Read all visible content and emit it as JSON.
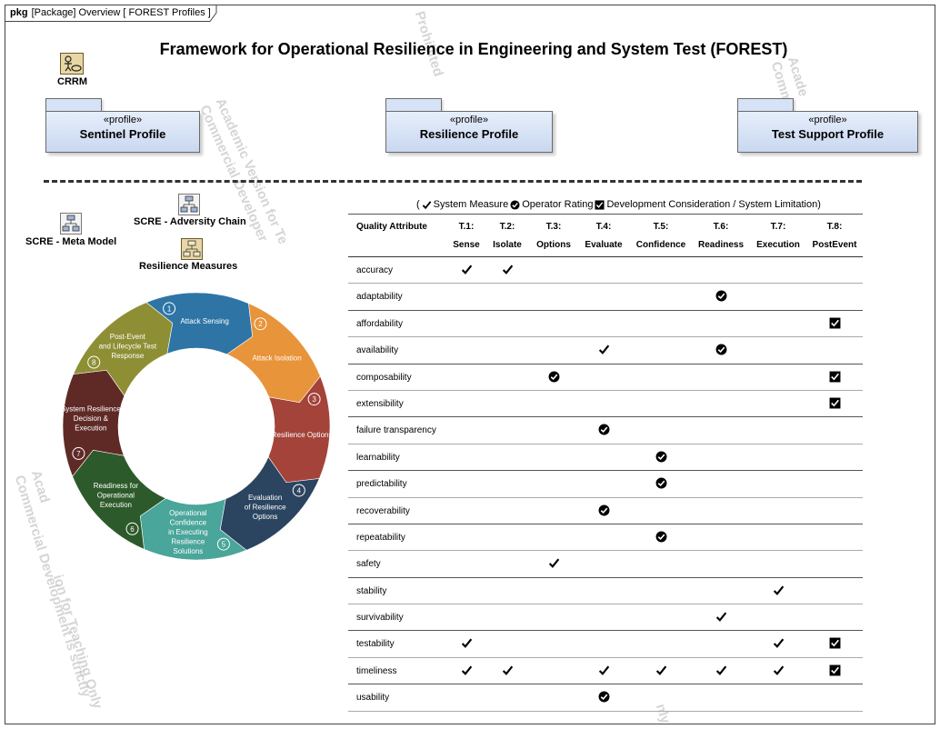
{
  "frame": {
    "kind": "pkg",
    "label": "[Package] Overview [ FOREST Profiles ]"
  },
  "title": "Framework for Operational Resilience in Engineering and System Test (FOREST)",
  "watermark": {
    "lines": [
      "Academic Version for Teaching Only",
      "Commercial Development is strictly Prohibited"
    ],
    "fragments": [
      "Prohibited",
      "Acade\nComm",
      "ion for Teaching Only",
      "Academic Version for Te\nCommercial Developer",
      "Acad\nCommercial Development is strictly",
      "nly"
    ]
  },
  "icons": {
    "crrm": "CRRM",
    "adversity_chain": "SCRE - Adversity Chain",
    "meta_model": "SCRE - Meta Model",
    "resilience_measures": "Resilience Measures"
  },
  "profiles": [
    {
      "stereotype": "«profile»",
      "name": "Sentinel Profile"
    },
    {
      "stereotype": "«profile»",
      "name": "Resilience Profile"
    },
    {
      "stereotype": "«profile»",
      "name": "Test Support Profile"
    }
  ],
  "cycle": {
    "segments": [
      {
        "n": "1",
        "lines": [
          "Attack Sensing"
        ],
        "color": "#2e75a6"
      },
      {
        "n": "2",
        "lines": [
          "Attack Isolation"
        ],
        "color": "#e8943a"
      },
      {
        "n": "3",
        "lines": [
          "Resilience Options"
        ],
        "color": "#a4433a"
      },
      {
        "n": "4",
        "lines": [
          "Evaluation",
          "of Resilience",
          "Options"
        ],
        "color": "#2b4460"
      },
      {
        "n": "5",
        "lines": [
          "Operational",
          "Confidence",
          "in Executing",
          "Resilience",
          "Solutions"
        ],
        "color": "#4aa59a"
      },
      {
        "n": "6",
        "lines": [
          "Readiness for",
          "Operational",
          "Execution"
        ],
        "color": "#2d5a2a"
      },
      {
        "n": "7",
        "lines": [
          "System Resilience",
          "Decision &",
          "Execution"
        ],
        "color": "#5f2a26"
      },
      {
        "n": "8",
        "lines": [
          "Post-Event",
          "and Lifecycle Test",
          "Response"
        ],
        "color": "#8e8f35"
      }
    ]
  },
  "legend": {
    "open": "(",
    "system_measure": "System Measure",
    "operator_rating": "Operator Rating",
    "development": "Development Consideration / System Limitation)"
  },
  "table": {
    "attr_header": "Quality Attribute",
    "columns": [
      {
        "id": "T.1:",
        "label": "Sense"
      },
      {
        "id": "T.2:",
        "label": "Isolate"
      },
      {
        "id": "T.3:",
        "label": "Options"
      },
      {
        "id": "T.4:",
        "label": "Evaluate"
      },
      {
        "id": "T.5:",
        "label": "Confidence"
      },
      {
        "id": "T.6:",
        "label": "Readiness"
      },
      {
        "id": "T.7:",
        "label": "Execution"
      },
      {
        "id": "T.8:",
        "label": "PostEvent"
      }
    ],
    "rows": [
      {
        "name": "accuracy",
        "marks": [
          "check",
          "check",
          "",
          "",
          "",
          "",
          "",
          ""
        ]
      },
      {
        "name": "adaptability",
        "marks": [
          "",
          "",
          "",
          "",
          "",
          "circle",
          "",
          ""
        ]
      },
      {
        "name": "affordability",
        "marks": [
          "",
          "",
          "",
          "",
          "",
          "",
          "",
          "box"
        ]
      },
      {
        "name": "availability",
        "marks": [
          "",
          "",
          "",
          "check",
          "",
          "circle",
          "",
          ""
        ]
      },
      {
        "name": "composability",
        "marks": [
          "",
          "",
          "circle",
          "",
          "",
          "",
          "",
          "box"
        ]
      },
      {
        "name": "extensibility",
        "marks": [
          "",
          "",
          "",
          "",
          "",
          "",
          "",
          "box"
        ]
      },
      {
        "name": "failure transparency",
        "marks": [
          "",
          "",
          "",
          "circle",
          "",
          "",
          "",
          ""
        ]
      },
      {
        "name": "learnability",
        "marks": [
          "",
          "",
          "",
          "",
          "circle",
          "",
          "",
          ""
        ]
      },
      {
        "name": "predictability",
        "marks": [
          "",
          "",
          "",
          "",
          "circle",
          "",
          "",
          ""
        ]
      },
      {
        "name": "recoverability",
        "marks": [
          "",
          "",
          "",
          "circle",
          "",
          "",
          "",
          ""
        ]
      },
      {
        "name": "repeatability",
        "marks": [
          "",
          "",
          "",
          "",
          "circle",
          "",
          "",
          ""
        ]
      },
      {
        "name": "safety",
        "marks": [
          "",
          "",
          "check",
          "",
          "",
          "",
          "",
          ""
        ]
      },
      {
        "name": "stability",
        "marks": [
          "",
          "",
          "",
          "",
          "",
          "",
          "check",
          ""
        ]
      },
      {
        "name": "survivability",
        "marks": [
          "",
          "",
          "",
          "",
          "",
          "check",
          "",
          ""
        ]
      },
      {
        "name": "testability",
        "marks": [
          "check",
          "",
          "",
          "",
          "",
          "",
          "check",
          "box"
        ]
      },
      {
        "name": "timeliness",
        "marks": [
          "check",
          "check",
          "",
          "check",
          "check",
          "check",
          "check",
          "box"
        ]
      },
      {
        "name": "usability",
        "marks": [
          "",
          "",
          "",
          "circle",
          "",
          "",
          "",
          ""
        ]
      }
    ]
  }
}
